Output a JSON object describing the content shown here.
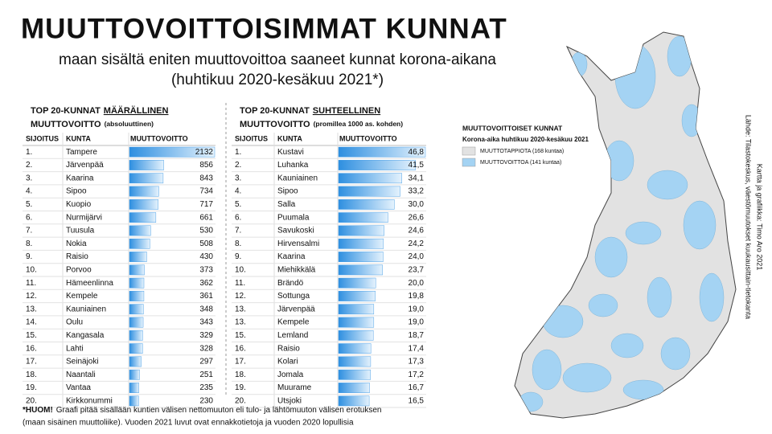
{
  "header": {
    "title": "MUUTTOVOITTOISIMMAT KUNNAT",
    "subtitle": [
      "maan sisältä eniten muuttovoittoa saaneet kunnat korona-aikana",
      "(huhtikuu 2020-kesäkuu 2021*)"
    ]
  },
  "chart_data": [
    {
      "type": "bar",
      "title": "TOP 20-KUNNAT",
      "title_emphasis": "MÄÄRÄLLINEN",
      "subtitle": "MUUTTOVOITTO",
      "subtitle_note": "(absoluuttinen)",
      "columns": [
        "SIJOITUS",
        "KUNTA",
        "MUUTTOVOITTO"
      ],
      "color": "#2e8fe0",
      "ranks": [
        "1.",
        "2.",
        "3.",
        "4.",
        "5.",
        "6.",
        "7.",
        "8.",
        "9.",
        "10.",
        "11.",
        "12.",
        "13.",
        "14.",
        "15.",
        "16.",
        "17.",
        "18.",
        "19.",
        "20."
      ],
      "categories": [
        "Tampere",
        "Järvenpää",
        "Kaarina",
        "Sipoo",
        "Kuopio",
        "Nurmijärvi",
        "Tuusula",
        "Nokia",
        "Raisio",
        "Porvoo",
        "Hämeenlinna",
        "Kempele",
        "Kauniainen",
        "Oulu",
        "Kangasala",
        "Lahti",
        "Seinäjoki",
        "Naantali",
        "Vantaa",
        "Kirkkonummi"
      ],
      "values": [
        2132,
        856,
        843,
        734,
        717,
        661,
        530,
        508,
        430,
        373,
        362,
        361,
        348,
        343,
        329,
        328,
        297,
        251,
        235,
        230
      ]
    },
    {
      "type": "bar",
      "title": "TOP 20-KUNNAT",
      "title_emphasis": "SUHTEELLINEN",
      "subtitle": "MUUTTOVOITTO",
      "subtitle_note": "(promillea 1000 as. kohden)",
      "columns": [
        "SIJOITUS",
        "KUNTA",
        "MUUTTOVOITTO"
      ],
      "color": "#2e8fe0",
      "ranks": [
        "1.",
        "2.",
        "3.",
        "4.",
        "5.",
        "6.",
        "7.",
        "8.",
        "9.",
        "10.",
        "11.",
        "12.",
        "13.",
        "13.",
        "15.",
        "16.",
        "17.",
        "18.",
        "19.",
        "20."
      ],
      "categories": [
        "Kustavi",
        "Luhanka",
        "Kauniainen",
        "Sipoo",
        "Salla",
        "Puumala",
        "Savukoski",
        "Hirvensalmi",
        "Kaarina",
        "Miehikkälä",
        "Brändö",
        "Sottunga",
        "Järvenpää",
        "Kempele",
        "Lemland",
        "Raisio",
        "Kolari",
        "Jomala",
        "Muurame",
        "Utsjoki"
      ],
      "values": [
        46.8,
        41.5,
        34.1,
        33.2,
        30.0,
        26.6,
        24.6,
        24.2,
        24.0,
        23.7,
        20.0,
        19.8,
        19.0,
        19.0,
        18.7,
        17.4,
        17.3,
        17.2,
        16.7,
        16.5
      ],
      "value_labels": [
        "46,8",
        "41,5",
        "34,1",
        "33,2",
        "30,0",
        "26,6",
        "24,6",
        "24,2",
        "24,0",
        "23,7",
        "20,0",
        "19,8",
        "19,0",
        "19,0",
        "18,7",
        "17,4",
        "17,3",
        "17,2",
        "16,7",
        "16,5"
      ]
    }
  ],
  "note": {
    "lead": "*HUOM!",
    "lines": [
      "Graafi pitää sisällään kuntien välisen nettomuuton  eli tulo- ja lähtömuuton välisen erotuksen",
      "(maan sisäinen muuttoliike). Vuoden 2021 luvut ovat ennakkotietoja  ja vuoden 2020 lopullisia"
    ]
  },
  "map": {
    "title": "MUUTTOVOITTOISET KUNNAT",
    "subtitle": "Korona-aika huhtikuu 2020-kesäkuu 2021",
    "legend": [
      {
        "label": "MUUTTOTAPPIOTA (168 kuntaa)",
        "color": "#e2e2e2"
      },
      {
        "label": "MUUTTOVOITTOA (141 kuntaa)",
        "color": "#a4d3f3"
      }
    ]
  },
  "source": [
    "Lähde: Tilastokeskus, väestömuutokset kuukausittain-tietokanta",
    "Kartta ja grafiikka: Timo Aro 2021"
  ]
}
